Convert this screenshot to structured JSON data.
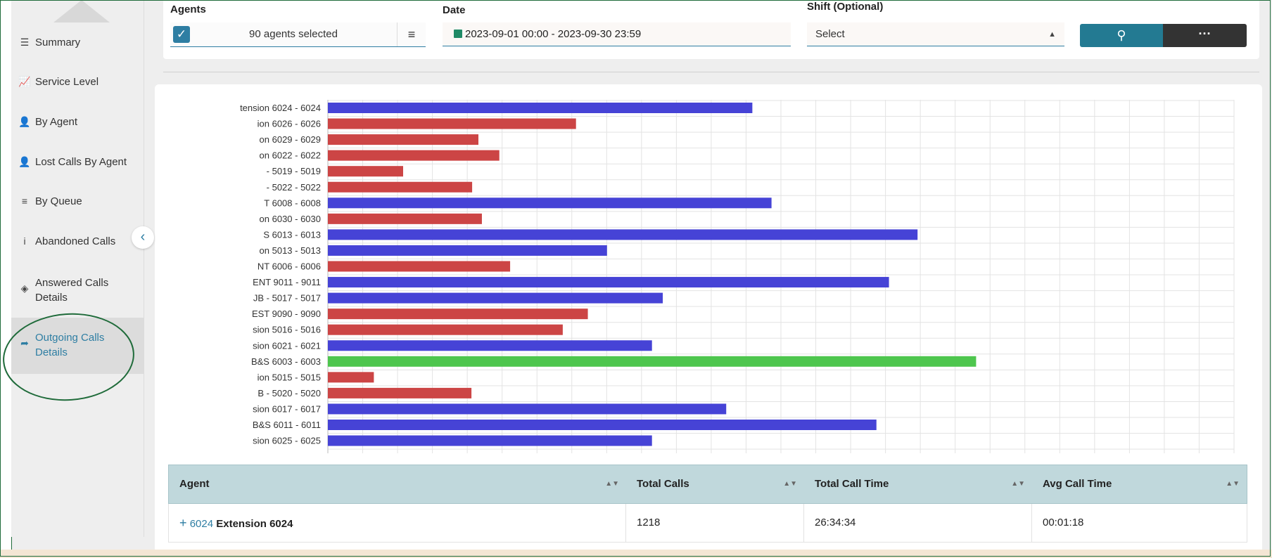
{
  "sidebar": {
    "items": [
      {
        "label": "Summary",
        "icon": "list-check-icon"
      },
      {
        "label": "Service Level",
        "icon": "line-chart-icon"
      },
      {
        "label": "By Agent",
        "icon": "user-arrow-icon"
      },
      {
        "label": "Lost Calls By Agent",
        "icon": "user-x-icon"
      },
      {
        "label": "By Queue",
        "icon": "bars-icon"
      },
      {
        "label": "Abandoned Calls",
        "icon": "info-icon"
      },
      {
        "label": "Answered Calls Details",
        "icon": "layers-icon"
      },
      {
        "label": "Outgoing Calls Details",
        "icon": "share-arrow-icon"
      }
    ],
    "active_index": 7
  },
  "filters": {
    "agents_label": "Agents",
    "agents_value": "90 agents selected",
    "date_label": "Date",
    "date_value": "2023-09-01 00:00 - 2023-09-30 23:59",
    "shift_label": "Shift (Optional)",
    "shift_value": "Select",
    "more_label": "···"
  },
  "colors": {
    "blue": "#4643d6",
    "red": "#cc4545",
    "green": "#4ec64e",
    "accent": "#2e7ea3"
  },
  "chart_data": {
    "type": "bar",
    "orientation": "horizontal",
    "grid": true,
    "categories": [
      "tension 6024 - 6024",
      "ion 6026 - 6026",
      "on 6029 - 6029",
      "on 6022 - 6022",
      "- 5019 - 5019",
      "- 5022 - 5022",
      "T 6008 - 6008",
      "on 6030 - 6030",
      "S 6013 - 6013",
      "on 5013 - 5013",
      "NT 6006 - 6006",
      "ENT 9011 - 9011",
      "JB - 5017 - 5017",
      "EST 9090 - 9090",
      "sion 5016 - 5016",
      "sion 6021 - 6021",
      "B&S 6003 - 6003",
      "ion 5015 - 5015",
      "B - 5020 - 5020",
      "sion 6017 - 6017",
      "B&S 6011 - 6011",
      "sion 6025 - 6025"
    ],
    "values": [
      1218,
      712,
      432,
      492,
      216,
      414,
      1273,
      442,
      1692,
      801,
      523,
      1610,
      961,
      746,
      674,
      930,
      1860,
      132,
      412,
      1143,
      1574,
      930
    ],
    "bar_colors": [
      "blue",
      "red",
      "red",
      "red",
      "red",
      "red",
      "blue",
      "red",
      "blue",
      "blue",
      "red",
      "blue",
      "blue",
      "red",
      "red",
      "blue",
      "green",
      "red",
      "red",
      "blue",
      "blue",
      "blue"
    ],
    "xlim": [
      0,
      2600
    ]
  },
  "table": {
    "headers": [
      "Agent",
      "Total Calls",
      "Total Call Time",
      "Avg Call Time"
    ],
    "rows": [
      {
        "ext": "6024",
        "name": "Extension 6024",
        "total_calls": "1218",
        "total_time": "26:34:34",
        "avg_time": "00:01:18"
      }
    ]
  }
}
